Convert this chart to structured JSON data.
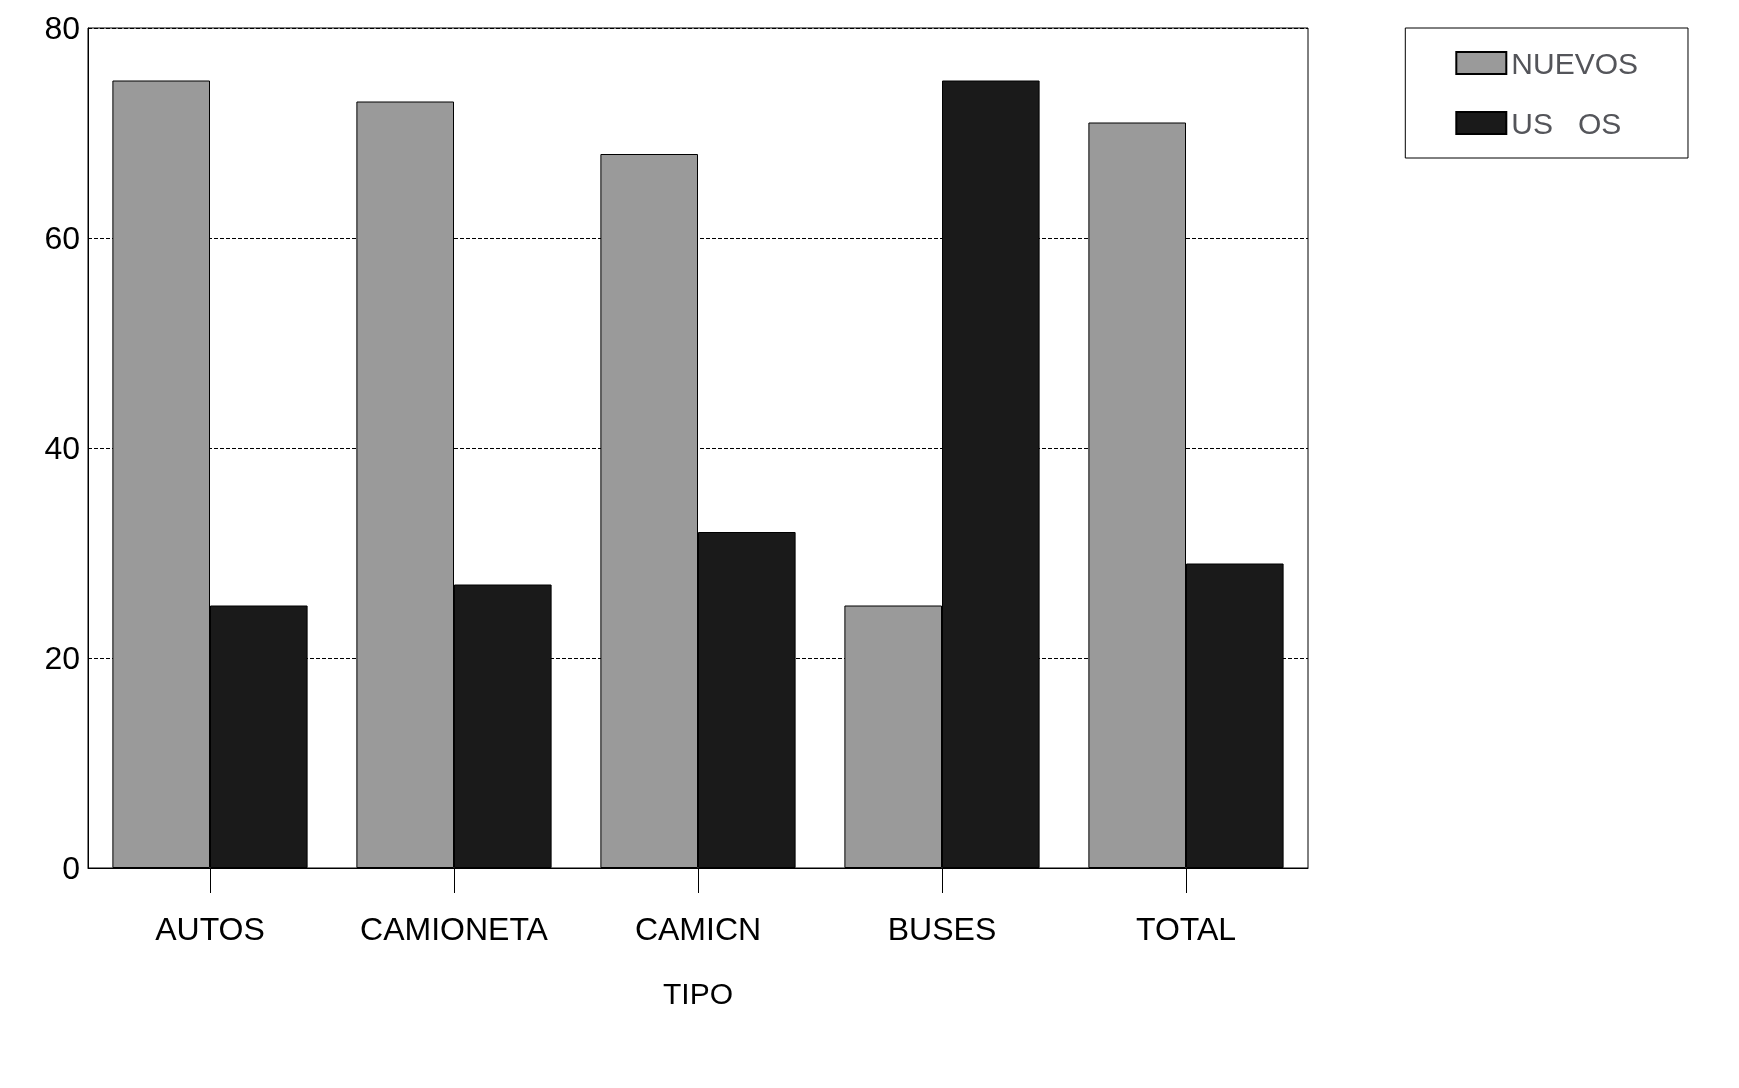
{
  "chart_data": {
    "type": "bar",
    "xlabel": "TIPO",
    "categories": [
      "AUTOS",
      "CAMIONETA",
      "CAMICN",
      "BUSES",
      "TOTAL"
    ],
    "series": [
      {
        "name": "NUEVOS",
        "color": "#9a9a9a",
        "values": [
          75,
          73,
          68,
          25,
          71
        ]
      },
      {
        "name": "US   OS",
        "color": "#1a1a1a",
        "values": [
          25,
          27,
          32,
          75,
          29
        ]
      }
    ],
    "ylim": [
      0,
      80
    ],
    "yticks": [
      0,
      20,
      40,
      60,
      80
    ],
    "grid": "y",
    "legend": "top right"
  }
}
